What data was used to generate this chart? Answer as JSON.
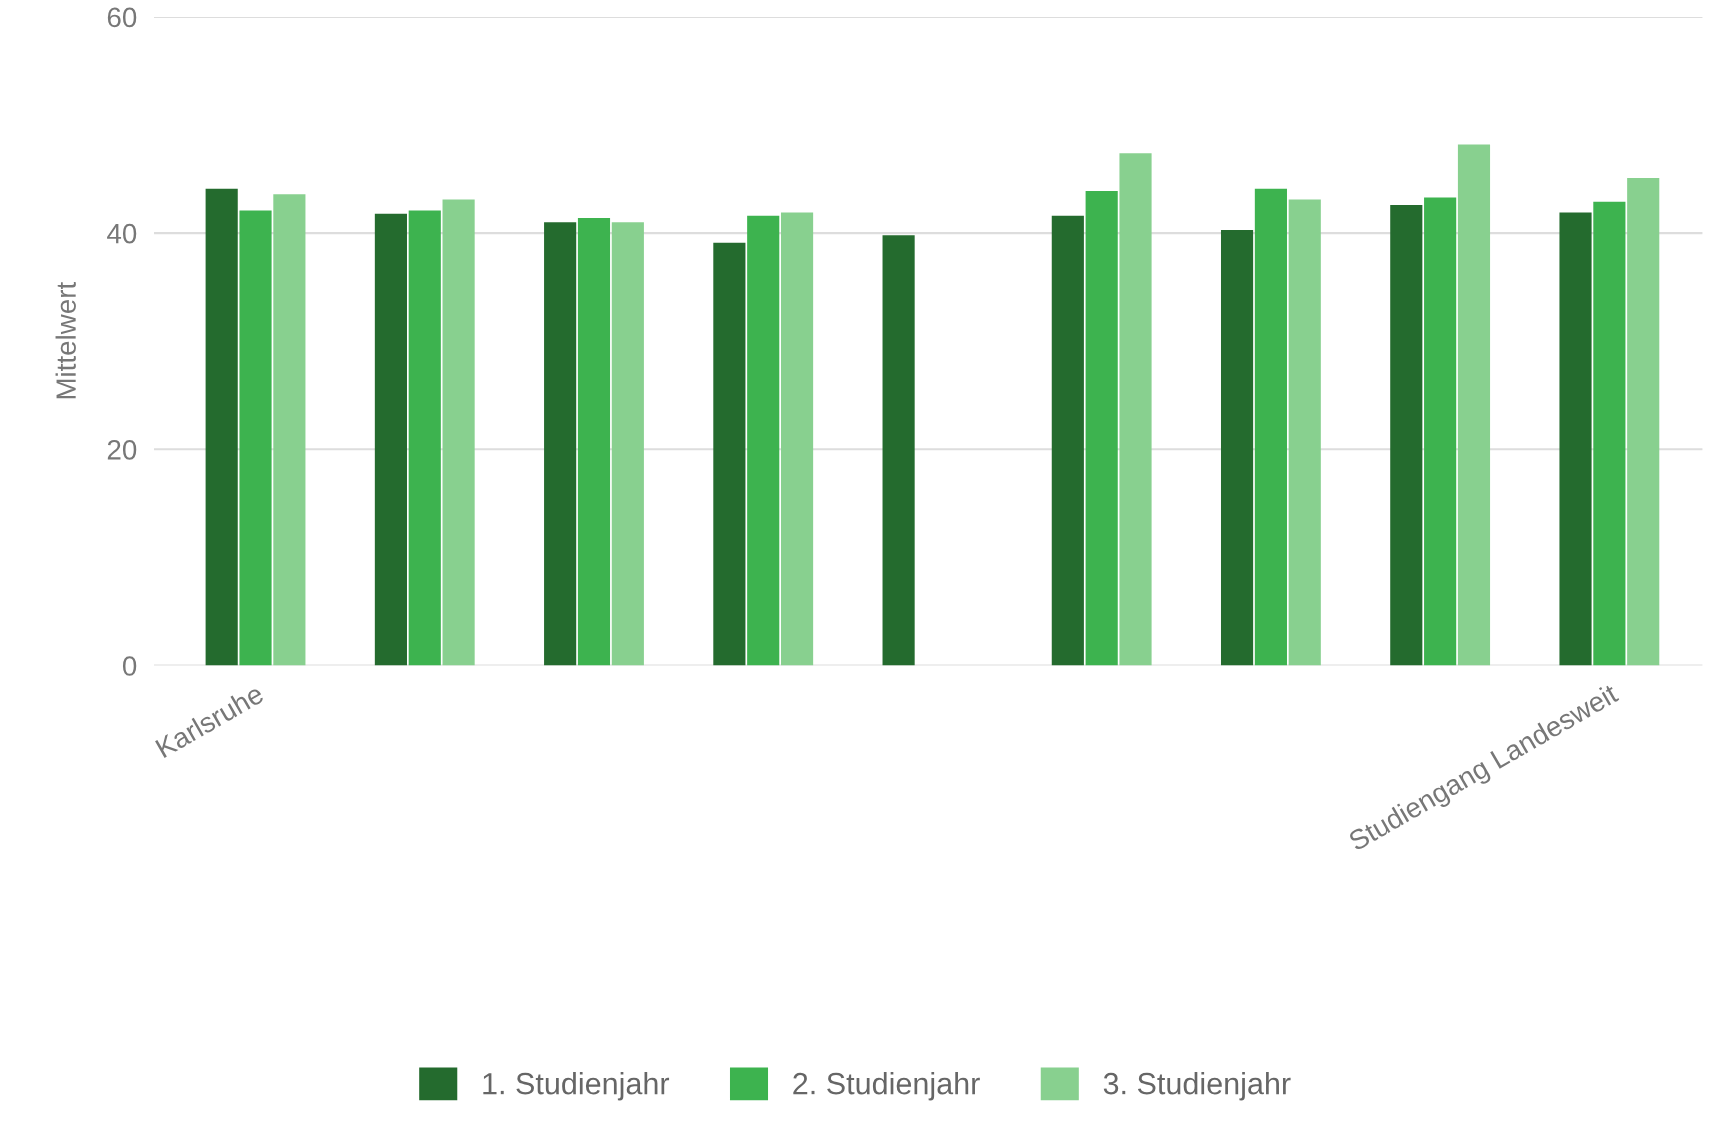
{
  "chart_data": {
    "type": "bar",
    "ylabel": "Mittelwert",
    "categories": [
      "Karlsruhe",
      null,
      null,
      null,
      null,
      null,
      null,
      null,
      "Studiengang Landesweit"
    ],
    "series": [
      {
        "name": "1. Studienjahr",
        "color": "#246b2e",
        "values": [
          44.1,
          41.8,
          41.0,
          39.1,
          39.8,
          41.6,
          40.3,
          42.6,
          41.9
        ]
      },
      {
        "name": "2. Studienjahr",
        "color": "#3db34f",
        "values": [
          42.1,
          42.1,
          41.4,
          41.6,
          null,
          43.9,
          44.1,
          43.3,
          42.9
        ]
      },
      {
        "name": "3. Studienjahr",
        "color": "#88d08f",
        "values": [
          43.6,
          43.1,
          41.0,
          41.9,
          null,
          47.4,
          43.1,
          48.2,
          45.1
        ]
      }
    ],
    "ylim": [
      0,
      60
    ],
    "yticks": [
      0,
      20,
      40,
      60
    ],
    "grid": "y",
    "legend": "bottom"
  }
}
